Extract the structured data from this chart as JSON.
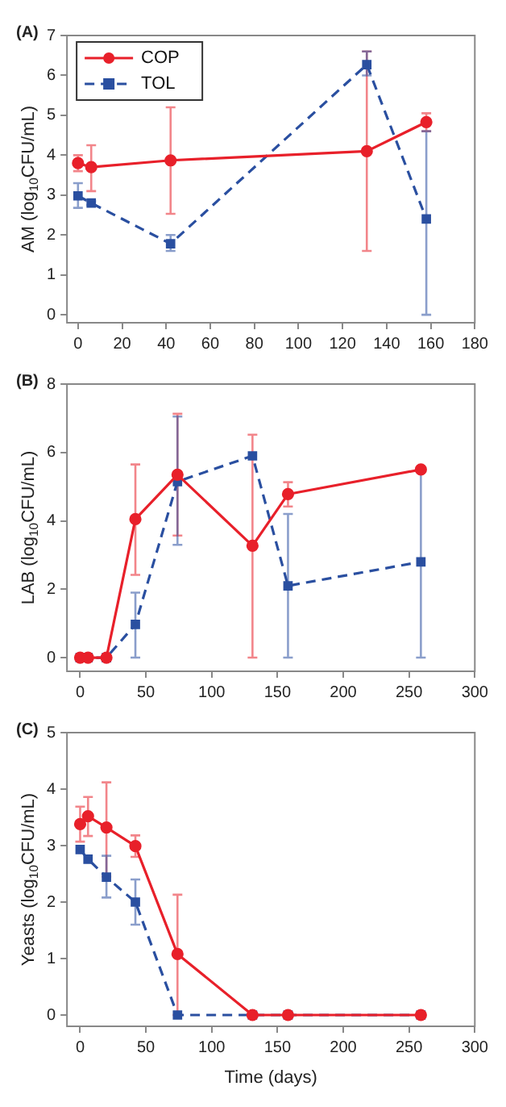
{
  "chart_data": [
    {
      "type": "line",
      "title": "(A)",
      "ylabel": "AM (log$_{10}$CFU/mL)",
      "xlim": [
        -5,
        180
      ],
      "xticks": [
        0,
        20,
        40,
        60,
        80,
        100,
        120,
        140,
        160,
        180
      ],
      "ylim": [
        -0.2,
        7
      ],
      "yticks": [
        0,
        1,
        2,
        3,
        4,
        5,
        6,
        7
      ],
      "grid": false,
      "legend": "top left",
      "series": [
        {
          "name": "COP",
          "color": "#e8202a",
          "marker": "circle",
          "line_style": "solid",
          "x": [
            0,
            6,
            42,
            131,
            158
          ],
          "values": [
            3.8,
            3.7,
            3.87,
            4.1,
            4.83
          ],
          "errors": [
            [
              3.6,
              4.0
            ],
            [
              3.1,
              4.25
            ],
            [
              2.53,
              5.2
            ],
            [
              1.6,
              6.6
            ],
            [
              4.6,
              5.05
            ]
          ]
        },
        {
          "name": "TOL",
          "color": "#2a4fa0",
          "marker": "square",
          "line_style": "dashed",
          "x": [
            0,
            6,
            42,
            131,
            158
          ],
          "values": [
            2.98,
            2.8,
            1.78,
            6.27,
            2.4
          ],
          "errors": [
            [
              2.68,
              3.3
            ],
            [
              2.75,
              2.85
            ],
            [
              1.6,
              2.0
            ],
            [
              6.0,
              6.6
            ],
            [
              0,
              4.6
            ]
          ]
        }
      ]
    },
    {
      "type": "line",
      "title": "(B)",
      "ylabel": "LAB (log$_{10}$CFU/mL)",
      "xlim": [
        -10,
        300
      ],
      "xticks": [
        0,
        50,
        100,
        150,
        200,
        250,
        300
      ],
      "ylim": [
        -0.4,
        8
      ],
      "yticks": [
        0,
        2,
        4,
        6,
        8
      ],
      "grid": false,
      "series": [
        {
          "color": "#e8202a",
          "marker": "circle",
          "line_style": "solid",
          "x": [
            0,
            6,
            20,
            42,
            74,
            131,
            158,
            259
          ],
          "values": [
            0,
            0,
            0,
            4.05,
            5.35,
            3.27,
            4.78,
            5.5
          ],
          "errors": [
            null,
            null,
            null,
            [
              2.42,
              5.65
            ],
            [
              3.57,
              7.13
            ],
            [
              0,
              6.52
            ],
            [
              4.42,
              5.13
            ],
            null
          ]
        },
        {
          "color": "#2a4fa0",
          "marker": "square",
          "line_style": "dashed",
          "x": [
            0,
            6,
            20,
            42,
            74,
            131,
            158,
            259
          ],
          "values": [
            0,
            0,
            0,
            0.97,
            5.15,
            5.9,
            2.1,
            2.8
          ],
          "errors": [
            null,
            null,
            null,
            [
              0,
              1.9
            ],
            [
              3.3,
              7.05
            ],
            null,
            [
              0,
              4.2
            ],
            [
              0,
              5.55
            ]
          ]
        }
      ]
    },
    {
      "type": "line",
      "title": "(C)",
      "xlabel": "Time (days)",
      "ylabel": "Yeasts (log$_{10}$CFU/mL)",
      "xlim": [
        -10,
        300
      ],
      "xticks": [
        0,
        50,
        100,
        150,
        200,
        250,
        300
      ],
      "ylim": [
        -0.2,
        5
      ],
      "yticks": [
        0,
        1,
        2,
        3,
        4,
        5
      ],
      "grid": false,
      "series": [
        {
          "color": "#e8202a",
          "marker": "circle",
          "line_style": "solid",
          "x": [
            0,
            6,
            20,
            42,
            74,
            131,
            158,
            259
          ],
          "values": [
            3.38,
            3.52,
            3.32,
            2.99,
            1.08,
            0,
            0,
            0
          ],
          "errors": [
            [
              3.07,
              3.69
            ],
            [
              3.17,
              3.86
            ],
            [
              2.45,
              4.12
            ],
            [
              2.8,
              3.18
            ],
            [
              0,
              2.13
            ],
            null,
            null,
            null
          ]
        },
        {
          "color": "#2a4fa0",
          "marker": "square",
          "line_style": "dashed",
          "x": [
            0,
            6,
            20,
            42,
            74,
            131,
            158,
            259
          ],
          "values": [
            2.93,
            2.76,
            2.44,
            2.0,
            0,
            0,
            0,
            0
          ],
          "errors": [
            null,
            null,
            [
              2.08,
              2.82
            ],
            [
              1.6,
              2.4
            ],
            null,
            null,
            null,
            null
          ]
        }
      ]
    }
  ]
}
